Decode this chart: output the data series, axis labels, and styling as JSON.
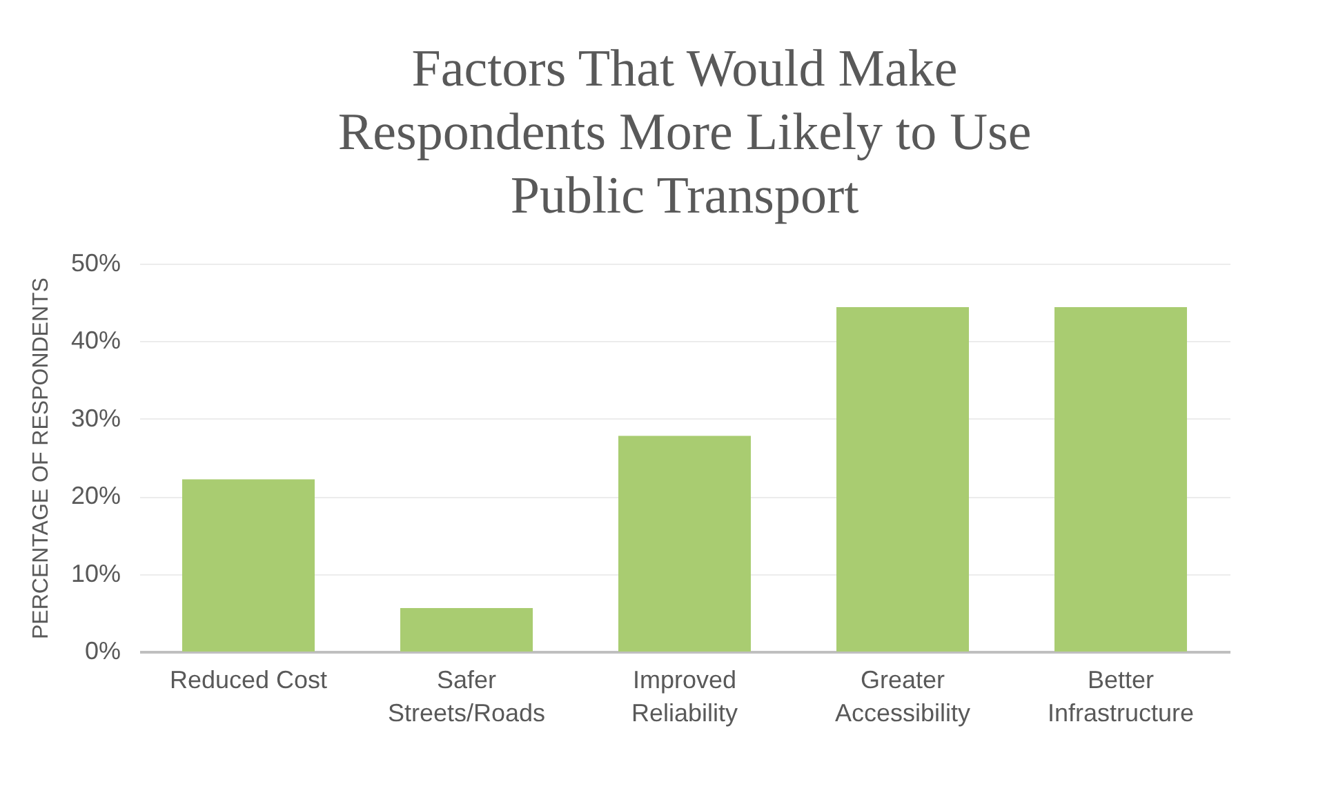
{
  "chart_data": {
    "type": "bar",
    "title": [
      "Factors That Would Make",
      "Respondents More Likely to Use",
      "Public Transport"
    ],
    "ylabel": "PERCENTAGE OF RESPONDENTS",
    "categories": [
      "Reduced Cost",
      "Safer\nStreets/Roads",
      "Improved\nReliability",
      "Greater\nAccessibility",
      "Better\nInfrastructure"
    ],
    "values": [
      22.2,
      5.6,
      27.8,
      44.4,
      44.4
    ],
    "color": "#a9cc71",
    "ylim": [
      0,
      50
    ],
    "yticks": [
      {
        "value": 0,
        "label": "0%"
      },
      {
        "value": 10,
        "label": "10%"
      },
      {
        "value": 20,
        "label": "20%"
      },
      {
        "value": 30,
        "label": "30%"
      },
      {
        "value": 40,
        "label": "40%"
      },
      {
        "value": 50,
        "label": "50%"
      }
    ],
    "grid": "y"
  }
}
